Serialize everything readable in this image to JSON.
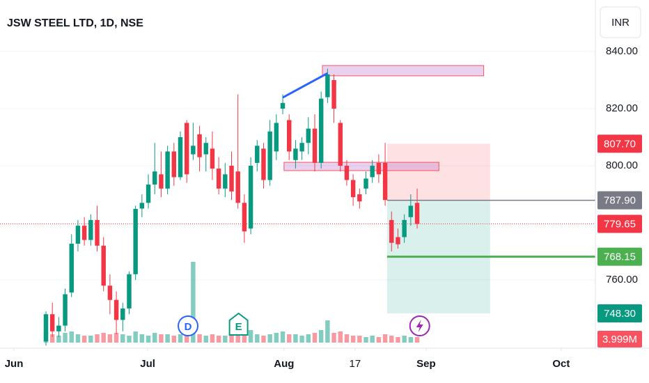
{
  "chart_data": {
    "type": "candlestick",
    "title": "JSW STEEL LTD, 1D, NSE",
    "currency": "INR",
    "up_color": "#089981",
    "down_color": "#f23645",
    "xlim": [
      -7.18,
      85.85
    ],
    "ylim": [
      736.1,
      858.05
    ],
    "vlim": [
      0,
      60
    ],
    "yticks": [
      {
        "value": 760,
        "label": "760.00"
      },
      {
        "value": 800,
        "label": "800.00"
      },
      {
        "value": 820,
        "label": "820.00"
      },
      {
        "value": 840,
        "label": "840.00"
      }
    ],
    "xticks": [
      {
        "value": -5,
        "label": "Jun"
      },
      {
        "value": 15.9,
        "label": "Jul"
      },
      {
        "value": 37.2,
        "label": "Aug"
      },
      {
        "value": 48.3,
        "label": "17"
      },
      {
        "value": 59.4,
        "label": "Sep"
      },
      {
        "value": 80.5,
        "label": "Oct"
      }
    ],
    "open": [
      738.5,
      748,
      742,
      744,
      755.6,
      772.7,
      779,
      774,
      781,
      772,
      758,
      753,
      746,
      750,
      762,
      785,
      787,
      793.4,
      797,
      792,
      805,
      796,
      815,
      804,
      811,
      804,
      806,
      799,
      792,
      800,
      798,
      787,
      778,
      801,
      806,
      795,
      805,
      820,
      816,
      802,
      805,
      808,
      813,
      801,
      824,
      830,
      815,
      800,
      795,
      790,
      792,
      796,
      801,
      801,
      781,
      775,
      775,
      782,
      787
    ],
    "high": [
      749,
      752,
      747,
      757,
      776,
      781,
      782,
      783,
      786,
      775,
      762,
      756,
      752,
      763,
      786,
      790,
      797,
      808,
      805,
      807,
      808,
      812,
      816,
      815,
      814,
      810,
      812,
      803,
      801,
      805,
      825,
      790,
      803,
      809,
      808,
      816,
      818,
      825,
      818,
      809,
      810,
      817,
      818,
      826,
      834,
      832,
      816,
      802,
      797,
      792,
      798,
      802,
      804,
      808,
      784,
      778,
      783,
      790,
      792
    ],
    "low": [
      737,
      740,
      740,
      742,
      754,
      770,
      772,
      772,
      770,
      756,
      748,
      741,
      742,
      748,
      760,
      782,
      785,
      790,
      789,
      790,
      793,
      795,
      794,
      802,
      798,
      798,
      795,
      790,
      789,
      788,
      785,
      773,
      776,
      798,
      792,
      793,
      802,
      818,
      802,
      799,
      802,
      804,
      798,
      799,
      822,
      815,
      798,
      793,
      786,
      785,
      790,
      794,
      794,
      786,
      770,
      771,
      773,
      779,
      778
    ],
    "close": [
      748,
      742,
      744,
      755,
      772.7,
      779,
      774,
      781,
      772,
      758,
      753,
      746,
      750,
      762,
      784.9,
      787,
      793.4,
      798,
      792,
      805,
      796,
      810,
      797,
      807,
      803,
      808,
      799,
      792,
      797,
      791,
      787,
      777,
      800,
      807,
      795,
      812,
      815,
      822,
      805,
      806,
      808,
      813,
      801,
      823.5,
      832,
      820,
      800,
      795,
      789,
      787.5,
      795.5,
      800,
      797,
      788,
      773,
      772.5,
      781,
      786,
      779.65
    ],
    "volume": [
      9,
      6,
      5,
      7,
      8,
      6,
      5,
      5,
      6,
      7,
      6,
      7,
      6,
      5,
      8,
      6,
      5,
      7,
      6,
      6,
      5,
      6,
      7,
      58,
      6,
      5,
      6,
      5,
      5,
      6,
      7,
      8,
      9,
      6,
      5,
      6,
      7,
      8,
      6,
      6,
      5,
      6,
      7,
      9,
      16,
      7,
      8,
      6,
      5,
      5,
      4,
      5,
      4,
      6,
      5,
      4,
      5,
      4,
      3.999
    ],
    "last_volume_label": "3.999M",
    "current_price": {
      "value": 779.65,
      "label": "779.65"
    },
    "zones": [
      {
        "from": 43.2,
        "to": 68.4,
        "low": 831.5,
        "high": 835.1
      },
      {
        "from": 37.2,
        "to": 61.4,
        "low": 798.3,
        "high": 801.2
      }
    ],
    "trendline": {
      "from": 37,
      "to": 44,
      "start": 823.9,
      "end": 832.4
    },
    "position": {
      "from": 53.3,
      "to": 69.4,
      "stop": {
        "value": 807.7,
        "label": "807.70"
      },
      "entry": {
        "value": 787.9,
        "label": "787.90"
      },
      "target": {
        "value": 748.3,
        "label": "748.30"
      }
    },
    "level": {
      "from": 53.3,
      "value": 768.15,
      "label": "768.15"
    },
    "events": [
      {
        "index": 22.2,
        "label": "D"
      },
      {
        "index": 30.1,
        "label": "E"
      },
      {
        "index": 58.4
      }
    ]
  }
}
